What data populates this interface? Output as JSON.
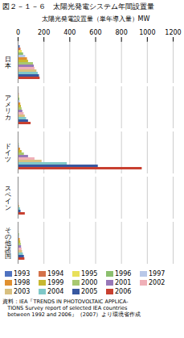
{
  "chart_data": {
    "type": "bar",
    "orientation": "horizontal",
    "title": "図２－１－６　太陽光発電システム年間設置量",
    "x_label": "太陽光発電設置量（単年導入量）MW",
    "categories": [
      "日\n本",
      "ア\nメ\nリ\nカ",
      "ド\nイ\nツ",
      "ス\nペ\nイ\nン",
      "そ\nの\n他\n諸\n国"
    ],
    "series": [
      {
        "name": "1993",
        "color": "#4f72c0",
        "values": [
          16,
          5,
          2,
          1,
          3
        ]
      },
      {
        "name": "1994",
        "color": "#d4724a",
        "values": [
          22,
          8,
          3,
          1,
          5
        ]
      },
      {
        "name": "1995",
        "color": "#e8e05a",
        "values": [
          32,
          10,
          5,
          2,
          7
        ]
      },
      {
        "name": "1996",
        "color": "#8cbf6e",
        "values": [
          42,
          13,
          8,
          2,
          10
        ]
      },
      {
        "name": "1997",
        "color": "#b8c8e8",
        "values": [
          58,
          16,
          12,
          3,
          12
        ]
      },
      {
        "name": "1998",
        "color": "#e09030",
        "values": [
          72,
          20,
          18,
          3,
          16
        ]
      },
      {
        "name": "1999",
        "color": "#c8b830",
        "values": [
          80,
          25,
          30,
          4,
          20
        ]
      },
      {
        "name": "2000",
        "color": "#a8c870",
        "values": [
          118,
          30,
          48,
          5,
          24
        ]
      },
      {
        "name": "2001",
        "color": "#9878b8",
        "values": [
          125,
          36,
          80,
          6,
          26
        ]
      },
      {
        "name": "2002",
        "color": "#f0b0b8",
        "values": [
          130,
          46,
          130,
          8,
          30
        ]
      },
      {
        "name": "2003",
        "color": "#d8c080",
        "values": [
          145,
          55,
          185,
          12,
          34
        ]
      },
      {
        "name": "2004",
        "color": "#80c8c8",
        "values": [
          155,
          65,
          380,
          18,
          40
        ]
      },
      {
        "name": "2005",
        "color": "#3858a0",
        "values": [
          165,
          80,
          620,
          22,
          48
        ]
      },
      {
        "name": "2006",
        "color": "#c84030",
        "values": [
          170,
          100,
          960,
          55,
          52
        ]
      }
    ],
    "xlim": [
      0,
      1200
    ],
    "xticks": [
      0,
      200,
      400,
      600,
      800,
      1000,
      1200
    ],
    "grid": true,
    "legend": "bottom",
    "caption": "資料：IEA『TRENDS IN PHOTOVOLTAIC APPLICA-\n   TIONS Survey report of selected IEA countries\n   between 1992 and 2006』（2007）より環境省作成"
  }
}
